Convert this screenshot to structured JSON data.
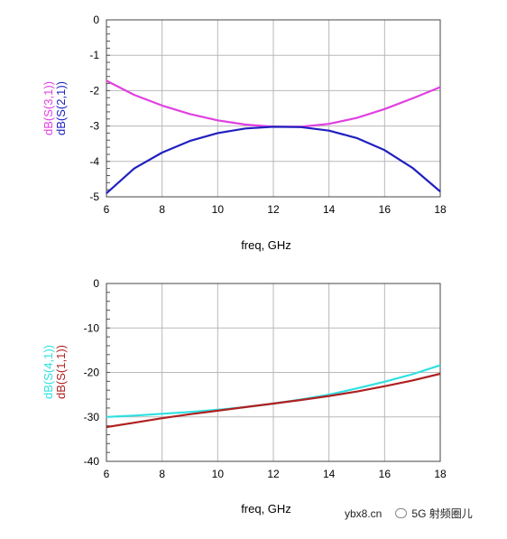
{
  "chart_data": [
    {
      "type": "line",
      "title": "",
      "xlabel": "freq, GHz",
      "xlim": [
        6,
        18
      ],
      "ylim": [
        -5,
        0
      ],
      "xticks": [
        6,
        8,
        10,
        12,
        14,
        16,
        18
      ],
      "yticks": [
        0,
        -1,
        -2,
        -3,
        -4,
        -5
      ],
      "grid": true,
      "minor_y_ticks": true,
      "series": [
        {
          "name": "dB(S(3,1))",
          "color": "#e040e0",
          "x": [
            6,
            7,
            8,
            9,
            10,
            11,
            12,
            13,
            14,
            15,
            16,
            17,
            18
          ],
          "y": [
            -1.72,
            -2.12,
            -2.42,
            -2.66,
            -2.84,
            -2.96,
            -3.02,
            -3.02,
            -2.94,
            -2.77,
            -2.52,
            -2.22,
            -1.9
          ]
        },
        {
          "name": "dB(S(2,1))",
          "color": "#2020c0",
          "x": [
            6,
            7,
            8,
            9,
            10,
            11,
            12,
            13,
            14,
            15,
            16,
            17,
            18
          ],
          "y": [
            -4.9,
            -4.2,
            -3.75,
            -3.42,
            -3.2,
            -3.07,
            -3.02,
            -3.03,
            -3.13,
            -3.34,
            -3.68,
            -4.18,
            -4.85
          ]
        }
      ]
    },
    {
      "type": "line",
      "title": "",
      "xlabel": "freq, GHz",
      "xlim": [
        6,
        18
      ],
      "ylim": [
        -40,
        0
      ],
      "xticks": [
        6,
        8,
        10,
        12,
        14,
        16,
        18
      ],
      "yticks": [
        0,
        -10,
        -20,
        -30,
        -40
      ],
      "grid": true,
      "minor_y_ticks": true,
      "series": [
        {
          "name": "dB(S(4,1))",
          "color": "#30e0e0",
          "x": [
            6,
            7,
            8,
            9,
            10,
            11,
            12,
            13,
            14,
            15,
            16,
            17,
            18
          ],
          "y": [
            -30,
            -29.7,
            -29.3,
            -28.9,
            -28.4,
            -27.8,
            -27.0,
            -26.1,
            -25.0,
            -23.6,
            -22.1,
            -20.4,
            -18.4
          ]
        },
        {
          "name": "dB(S(1,1))",
          "color": "#b02020",
          "x": [
            6,
            7,
            8,
            9,
            10,
            11,
            12,
            13,
            14,
            15,
            16,
            17,
            18
          ],
          "y": [
            -32.3,
            -31.3,
            -30.3,
            -29.4,
            -28.6,
            -27.8,
            -27.0,
            -26.2,
            -25.3,
            -24.3,
            -23.1,
            -21.8,
            -20.3
          ]
        }
      ]
    }
  ],
  "watermark": {
    "site": "ybx8.cn",
    "brand": "5G 射频圈儿"
  }
}
